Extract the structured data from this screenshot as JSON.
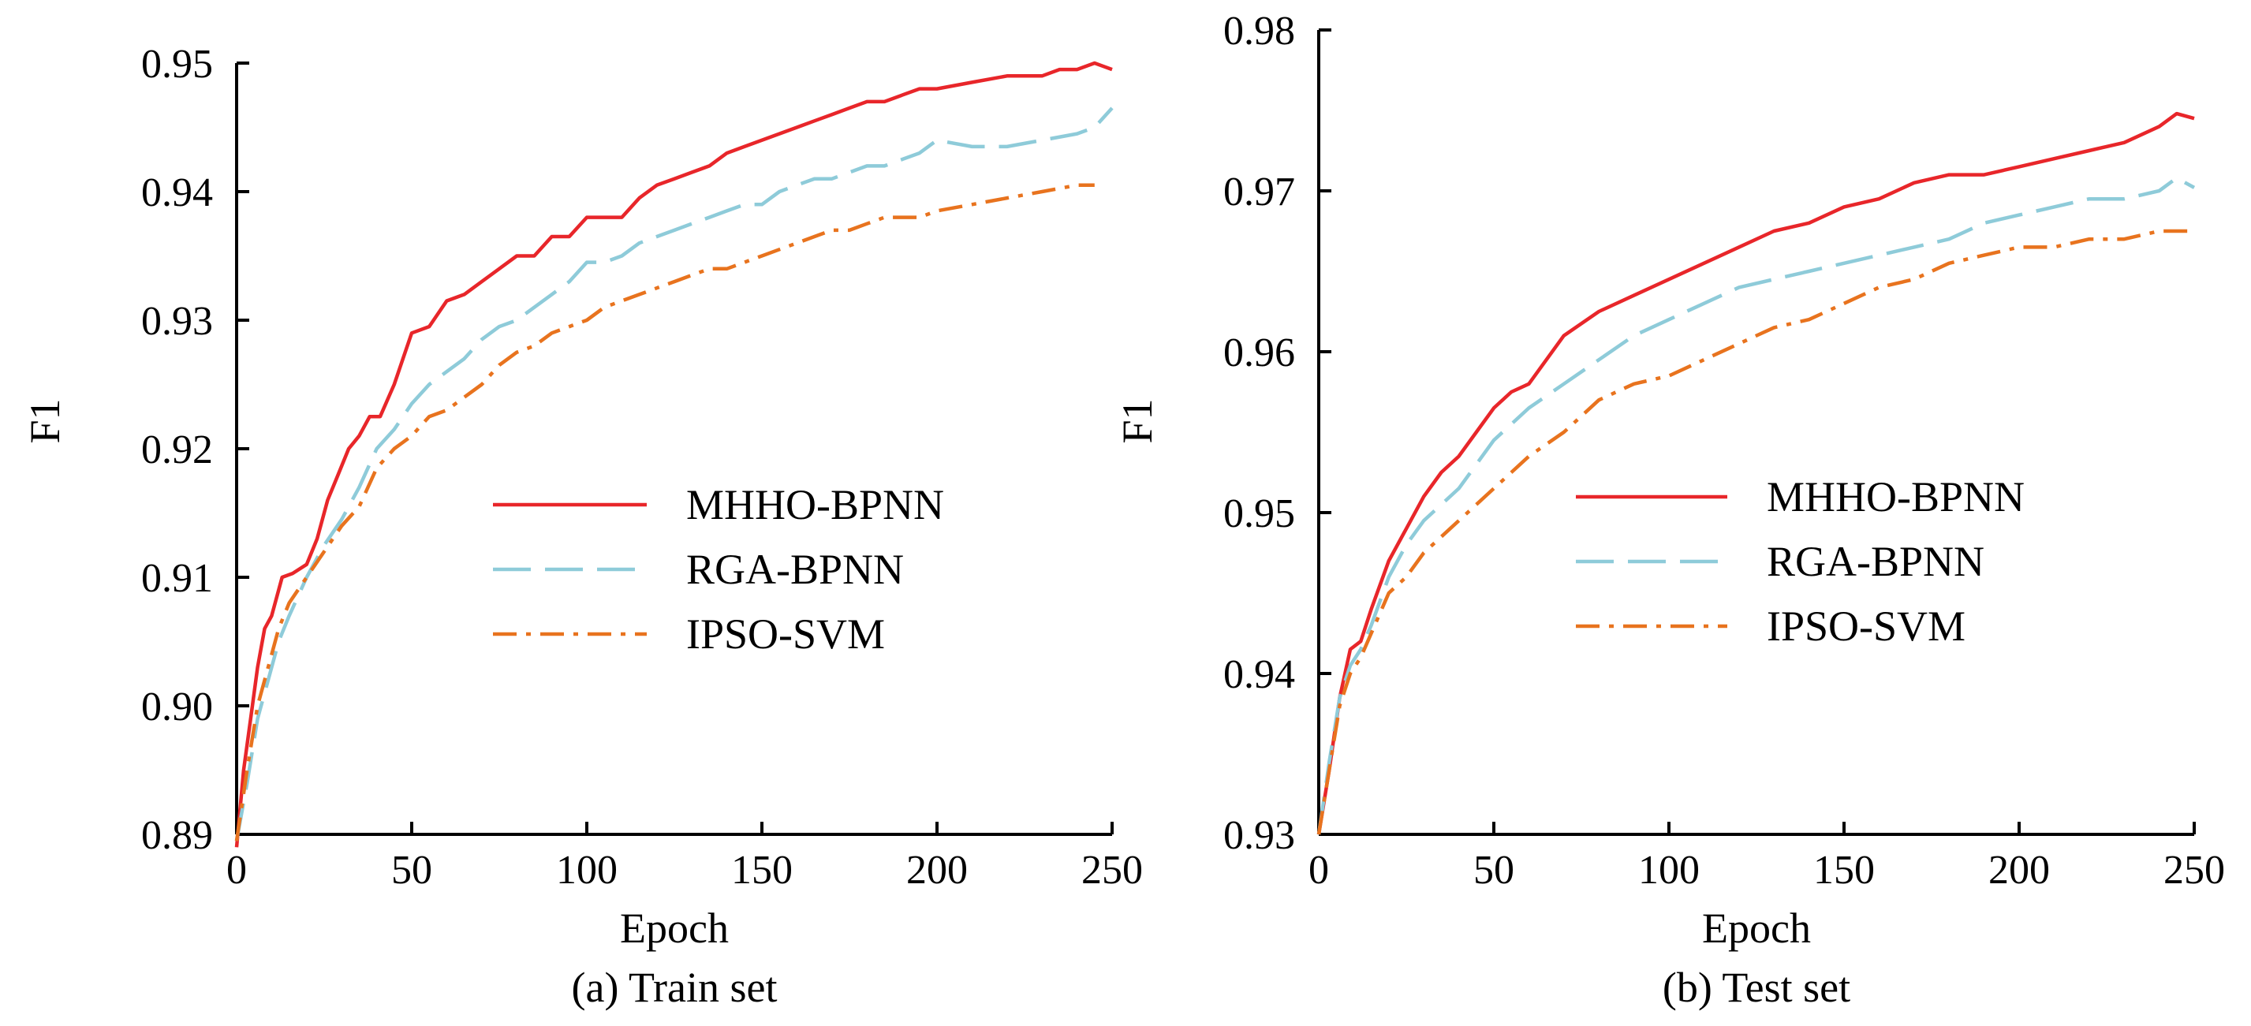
{
  "chart_data": [
    {
      "type": "line",
      "caption": "(a) Train set",
      "xlabel": "Epoch",
      "ylabel": "F1",
      "xlim": [
        0,
        250
      ],
      "ylim": [
        0.89,
        0.95
      ],
      "xticks": [
        "0",
        "50",
        "100",
        "150",
        "200",
        "250"
      ],
      "yticks": [
        "0.89",
        "0.90",
        "0.91",
        "0.92",
        "0.93",
        "0.94",
        "0.95"
      ],
      "grid": false,
      "legend_placement": "center-right",
      "series": [
        {
          "name": "MHHO-BPNN",
          "color": "#e8262a",
          "dash": "solid",
          "x": [
            0,
            2,
            4,
            6,
            8,
            10,
            13,
            16,
            20,
            23,
            26,
            29,
            32,
            35,
            38,
            41,
            45,
            50,
            55,
            60,
            65,
            70,
            75,
            80,
            85,
            90,
            95,
            100,
            105,
            110,
            115,
            120,
            125,
            130,
            135,
            140,
            145,
            150,
            155,
            160,
            165,
            170,
            175,
            180,
            185,
            190,
            195,
            200,
            210,
            220,
            230,
            235,
            240,
            245,
            250
          ],
          "y": [
            0.889,
            0.895,
            0.899,
            0.903,
            0.906,
            0.907,
            0.91,
            0.9103,
            0.911,
            0.913,
            0.916,
            0.918,
            0.92,
            0.921,
            0.9225,
            0.9225,
            0.925,
            0.929,
            0.9295,
            0.9315,
            0.932,
            0.933,
            0.934,
            0.935,
            0.935,
            0.9365,
            0.9365,
            0.938,
            0.938,
            0.938,
            0.9395,
            0.9405,
            0.941,
            0.9415,
            0.942,
            0.943,
            0.9435,
            0.944,
            0.9445,
            0.945,
            0.9455,
            0.946,
            0.9465,
            0.947,
            0.947,
            0.9475,
            0.948,
            0.948,
            0.9485,
            0.949,
            0.949,
            0.9495,
            0.9495,
            0.95,
            0.9495
          ]
        },
        {
          "name": "RGA-BPNN",
          "color": "#8ecbd9",
          "dash": "long-dash",
          "x": [
            0,
            3,
            6,
            9,
            12,
            15,
            20,
            25,
            30,
            35,
            40,
            45,
            50,
            55,
            60,
            65,
            70,
            75,
            80,
            85,
            90,
            95,
            100,
            105,
            110,
            115,
            120,
            125,
            130,
            135,
            140,
            145,
            150,
            155,
            160,
            165,
            170,
            175,
            180,
            185,
            190,
            195,
            200,
            210,
            220,
            230,
            240,
            245,
            250
          ],
          "y": [
            0.8895,
            0.894,
            0.899,
            0.902,
            0.905,
            0.907,
            0.91,
            0.9125,
            0.9145,
            0.917,
            0.92,
            0.9215,
            0.9235,
            0.925,
            0.926,
            0.927,
            0.9285,
            0.9295,
            0.93,
            0.931,
            0.932,
            0.933,
            0.9345,
            0.9345,
            0.935,
            0.936,
            0.9365,
            0.937,
            0.9375,
            0.938,
            0.9385,
            0.939,
            0.939,
            0.94,
            0.9405,
            0.941,
            0.941,
            0.9415,
            0.942,
            0.942,
            0.9425,
            0.943,
            0.944,
            0.9435,
            0.9435,
            0.944,
            0.9445,
            0.945,
            0.9465
          ]
        },
        {
          "name": "IPSO-SVM",
          "color": "#e8731e",
          "dash": "dash-dot",
          "x": [
            0,
            3,
            6,
            9,
            12,
            15,
            20,
            25,
            30,
            35,
            40,
            45,
            50,
            55,
            60,
            65,
            70,
            75,
            80,
            85,
            90,
            95,
            100,
            105,
            110,
            115,
            120,
            125,
            130,
            135,
            140,
            145,
            150,
            155,
            160,
            165,
            170,
            175,
            180,
            185,
            190,
            195,
            200,
            210,
            220,
            230,
            240,
            245
          ],
          "y": [
            0.8895,
            0.895,
            0.9,
            0.903,
            0.906,
            0.908,
            0.91,
            0.912,
            0.914,
            0.9155,
            0.9185,
            0.92,
            0.921,
            0.9225,
            0.923,
            0.924,
            0.925,
            0.9265,
            0.9275,
            0.928,
            0.929,
            0.9295,
            0.93,
            0.931,
            0.9315,
            0.932,
            0.9325,
            0.933,
            0.9335,
            0.934,
            0.934,
            0.9345,
            0.935,
            0.9355,
            0.936,
            0.9365,
            0.937,
            0.937,
            0.9375,
            0.938,
            0.938,
            0.938,
            0.9385,
            0.939,
            0.9395,
            0.94,
            0.9405,
            0.9405
          ]
        }
      ]
    },
    {
      "type": "line",
      "caption": "(b) Test set",
      "xlabel": "Epoch",
      "ylabel": "F1",
      "xlim": [
        0,
        250
      ],
      "ylim": [
        0.93,
        0.98
      ],
      "xticks": [
        "0",
        "50",
        "100",
        "150",
        "200",
        "250"
      ],
      "yticks": [
        "0.93",
        "0.94",
        "0.95",
        "0.96",
        "0.97",
        "0.98"
      ],
      "grid": false,
      "legend_placement": "center-right",
      "series": [
        {
          "name": "MHHO-BPNN",
          "color": "#e8262a",
          "dash": "solid",
          "x": [
            0,
            3,
            6,
            9,
            12,
            15,
            20,
            25,
            30,
            35,
            40,
            45,
            50,
            55,
            60,
            70,
            80,
            90,
            100,
            110,
            120,
            130,
            140,
            150,
            160,
            170,
            180,
            190,
            200,
            210,
            220,
            230,
            240,
            245,
            250
          ],
          "y": [
            0.93,
            0.934,
            0.9385,
            0.9415,
            0.942,
            0.944,
            0.947,
            0.949,
            0.951,
            0.9525,
            0.9535,
            0.955,
            0.9565,
            0.9575,
            0.958,
            0.961,
            0.9625,
            0.9635,
            0.9645,
            0.9655,
            0.9665,
            0.9675,
            0.968,
            0.969,
            0.9695,
            0.9705,
            0.971,
            0.971,
            0.9715,
            0.972,
            0.9725,
            0.973,
            0.974,
            0.9748,
            0.9745
          ]
        },
        {
          "name": "RGA-BPNN",
          "color": "#8ecbd9",
          "dash": "long-dash",
          "x": [
            0,
            3,
            6,
            9,
            12,
            15,
            20,
            25,
            30,
            35,
            40,
            50,
            60,
            70,
            80,
            90,
            100,
            110,
            120,
            130,
            140,
            150,
            160,
            170,
            180,
            190,
            200,
            210,
            220,
            230,
            240,
            245,
            250
          ],
          "y": [
            0.93,
            0.9345,
            0.9385,
            0.9405,
            0.9415,
            0.943,
            0.946,
            0.948,
            0.9495,
            0.9505,
            0.9515,
            0.9545,
            0.9565,
            0.958,
            0.9595,
            0.961,
            0.962,
            0.963,
            0.964,
            0.9645,
            0.965,
            0.9655,
            0.966,
            0.9665,
            0.967,
            0.968,
            0.9685,
            0.969,
            0.9695,
            0.9695,
            0.97,
            0.9708,
            0.9702
          ]
        },
        {
          "name": "IPSO-SVM",
          "color": "#e8731e",
          "dash": "dash-dot",
          "x": [
            0,
            3,
            6,
            9,
            12,
            15,
            20,
            25,
            30,
            35,
            40,
            50,
            60,
            70,
            80,
            90,
            100,
            110,
            120,
            130,
            140,
            150,
            160,
            170,
            180,
            190,
            200,
            210,
            220,
            230,
            240,
            245,
            250
          ],
          "y": [
            0.93,
            0.934,
            0.938,
            0.94,
            0.941,
            0.9425,
            0.945,
            0.946,
            0.9475,
            0.9485,
            0.9495,
            0.9515,
            0.9535,
            0.955,
            0.957,
            0.958,
            0.9585,
            0.9595,
            0.9605,
            0.9615,
            0.962,
            0.963,
            0.964,
            0.9645,
            0.9655,
            0.966,
            0.9665,
            0.9665,
            0.967,
            0.967,
            0.9675,
            0.9675,
            0.9675
          ]
        }
      ]
    }
  ]
}
